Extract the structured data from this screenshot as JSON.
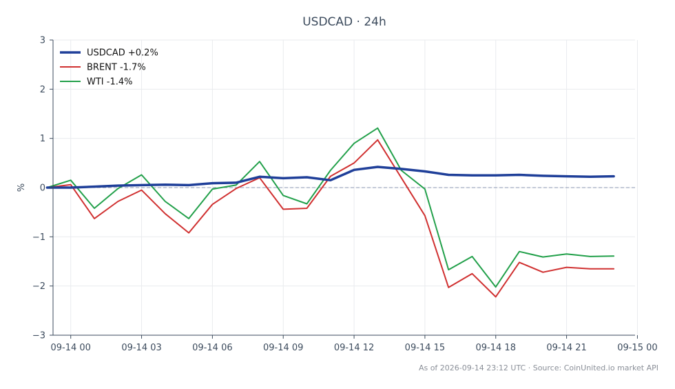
{
  "chart_data": {
    "type": "line",
    "title": "USDCAD · 24h",
    "xlabel": "",
    "ylabel": "%",
    "ylim": [
      -3,
      3
    ],
    "yticks": [
      -3,
      -2,
      -1,
      0,
      1,
      2,
      3
    ],
    "ytick_labels": [
      "−3",
      "−2",
      "−1",
      "0",
      "1",
      "2",
      "3"
    ],
    "xlim": [
      -0.75,
      23.9
    ],
    "xticks": [
      0,
      3,
      6,
      9,
      12,
      15,
      18,
      21,
      24
    ],
    "xtick_labels": [
      "09-14 00",
      "09-14 03",
      "09-14 06",
      "09-14 09",
      "09-14 12",
      "09-14 15",
      "09-14 18",
      "09-14 21",
      "09-15 00"
    ],
    "x": [
      -1,
      0,
      1,
      2,
      3,
      4,
      5,
      6,
      7,
      8,
      9,
      10,
      11,
      12,
      13,
      14,
      15,
      16,
      17,
      18,
      19,
      20,
      21,
      22,
      23
    ],
    "grid": true,
    "legend": "top-left",
    "zero_line": true,
    "series": [
      {
        "name": "USDCAD +0.2%",
        "color": "#1f3f99",
        "values": [
          0.0,
          0.0,
          0.02,
          0.04,
          0.05,
          0.06,
          0.05,
          0.09,
          0.1,
          0.22,
          0.19,
          0.21,
          0.15,
          0.36,
          0.42,
          0.38,
          0.33,
          0.26,
          0.25,
          0.25,
          0.26,
          0.24,
          0.23,
          0.22,
          0.23
        ]
      },
      {
        "name": "BRENT -1.7%",
        "color": "#d03030",
        "values": [
          0.0,
          0.06,
          -0.63,
          -0.28,
          -0.05,
          -0.53,
          -0.92,
          -0.34,
          -0.02,
          0.2,
          -0.44,
          -0.42,
          0.23,
          0.5,
          0.97,
          0.2,
          -0.57,
          -2.03,
          -1.75,
          -2.22,
          -1.52,
          -1.72,
          -1.62,
          -1.65,
          -1.65
        ]
      },
      {
        "name": "WTI -1.4%",
        "color": "#22a04a",
        "values": [
          0.0,
          0.15,
          -0.42,
          -0.02,
          0.26,
          -0.28,
          -0.63,
          -0.03,
          0.05,
          0.53,
          -0.16,
          -0.33,
          0.35,
          0.9,
          1.21,
          0.35,
          -0.03,
          -1.67,
          -1.4,
          -2.02,
          -1.3,
          -1.41,
          -1.35,
          -1.4,
          -1.39
        ]
      }
    ]
  },
  "footer": "As of 2026-09-14 23:12 UTC · Source: CoinUnited.io market API"
}
